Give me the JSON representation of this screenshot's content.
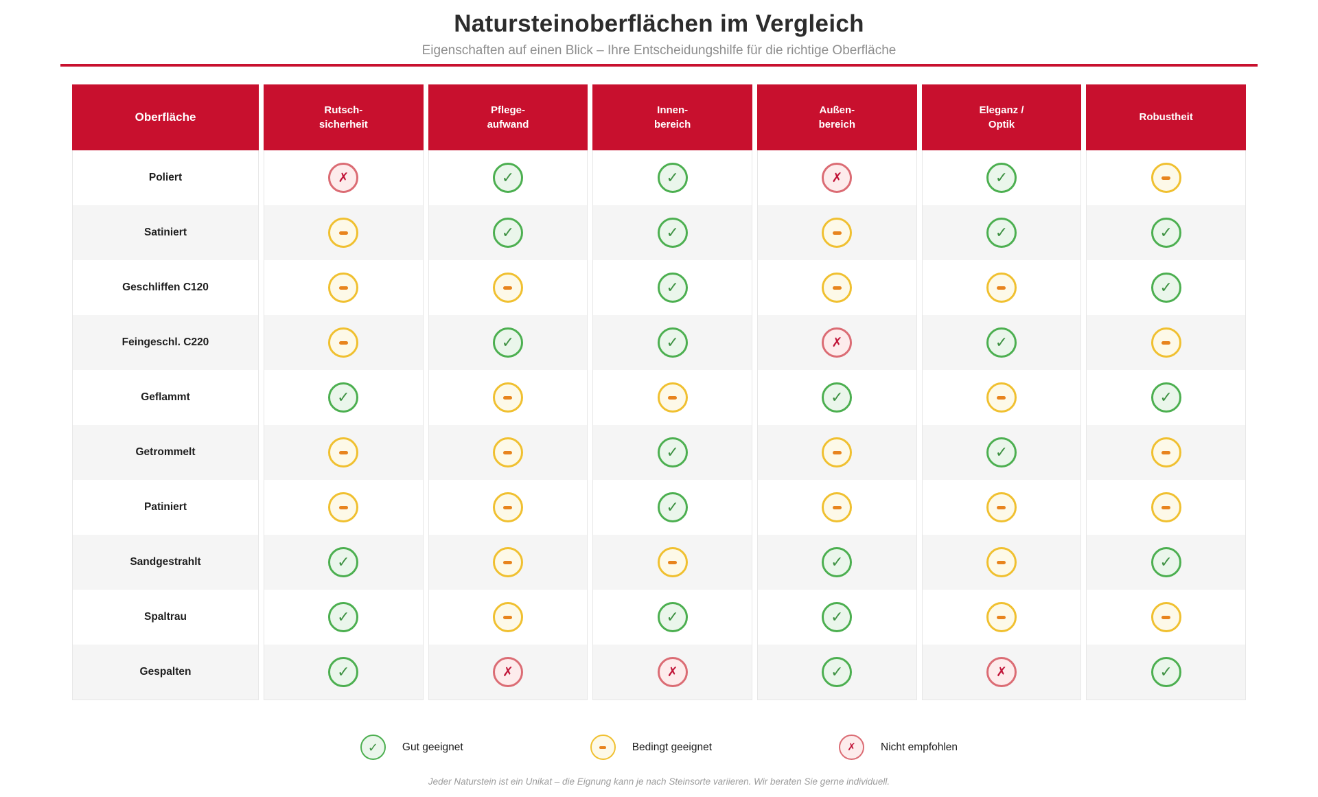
{
  "title": "Natursteinoberflächen im Vergleich",
  "subtitle": "Eigenschaften auf einen Blick – Ihre Entscheidungshilfe für die richtige Oberfläche",
  "footnote": "Jeder Naturstein ist ein Unikat – die Eignung kann je nach Steinsorte variieren. Wir beraten Sie gerne individuell.",
  "glyphs": {
    "good": "✓",
    "limited": "–",
    "bad": "✗"
  },
  "colors": {
    "header_red": "#c8102e",
    "row_alt_bg": "#f5f5f5",
    "good_border": "#4caf50",
    "good_bg": "#eaf6eb",
    "good_glyph": "#3d9142",
    "limited_border": "#f0c030",
    "limited_bg": "#fdf9e8",
    "limited_glyph": "#e8841d",
    "bad_border": "#db6c74",
    "bad_bg": "#fdecec",
    "bad_glyph": "#c11438"
  },
  "chart_data": {
    "type": "table",
    "title": "Natursteinoberflächen im Vergleich",
    "subtitle": "Eigenschaften auf einen Blick – Ihre Entscheidungshilfe für die richtige Oberfläche",
    "columns": [
      [
        "Oberfläche"
      ],
      [
        "Rutsch-",
        "sicherheit"
      ],
      [
        "Pflege-",
        "aufwand"
      ],
      [
        "Innen-",
        "bereich"
      ],
      [
        "Außen-",
        "bereich"
      ],
      [
        "Eleganz /",
        "Optik"
      ],
      [
        "Robustheit"
      ]
    ],
    "rating_scale": {
      "good": "Gut geeignet",
      "limited": "Bedingt geeignet",
      "bad": "Nicht empfohlen"
    },
    "rows": [
      {
        "label": "Poliert",
        "ratings": [
          "bad",
          "good",
          "good",
          "bad",
          "good",
          "limited"
        ]
      },
      {
        "label": "Satiniert",
        "ratings": [
          "limited",
          "good",
          "good",
          "limited",
          "good",
          "good"
        ]
      },
      {
        "label": "Geschliffen C120",
        "ratings": [
          "limited",
          "limited",
          "good",
          "limited",
          "limited",
          "good"
        ]
      },
      {
        "label": "Feingeschl. C220",
        "ratings": [
          "limited",
          "good",
          "good",
          "bad",
          "good",
          "limited"
        ]
      },
      {
        "label": "Geflammt",
        "ratings": [
          "good",
          "limited",
          "limited",
          "good",
          "limited",
          "good"
        ]
      },
      {
        "label": "Getrommelt",
        "ratings": [
          "limited",
          "limited",
          "good",
          "limited",
          "good",
          "limited"
        ]
      },
      {
        "label": "Patiniert",
        "ratings": [
          "limited",
          "limited",
          "good",
          "limited",
          "limited",
          "limited"
        ]
      },
      {
        "label": "Sandgestrahlt",
        "ratings": [
          "good",
          "limited",
          "limited",
          "good",
          "limited",
          "good"
        ]
      },
      {
        "label": "Spaltrau",
        "ratings": [
          "good",
          "limited",
          "good",
          "good",
          "limited",
          "limited"
        ]
      },
      {
        "label": "Gespalten",
        "ratings": [
          "good",
          "bad",
          "bad",
          "good",
          "bad",
          "good"
        ]
      }
    ],
    "legend": [
      {
        "type": "good",
        "label": "Gut geeignet"
      },
      {
        "type": "limited",
        "label": "Bedingt geeignet"
      },
      {
        "type": "bad",
        "label": "Nicht empfohlen"
      }
    ]
  }
}
